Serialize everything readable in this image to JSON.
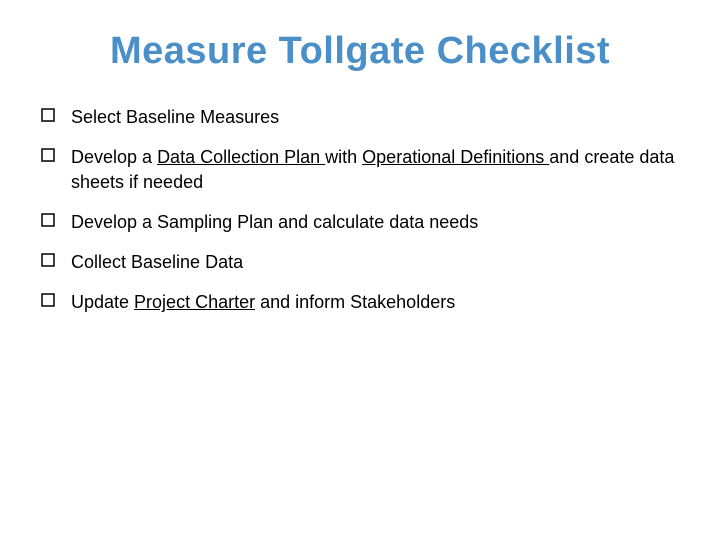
{
  "title": "Measure Tollgate Checklist",
  "title_color": "#4a8fc7",
  "title_fontsize": 38,
  "body_fontsize": 18,
  "body_color": "#000000",
  "checkbox_stroke": "#000000",
  "background_color": "#ffffff",
  "items": [
    {
      "segments": [
        {
          "text": "Select Baseline Measures",
          "underline": false
        }
      ]
    },
    {
      "segments": [
        {
          "text": "Develop a ",
          "underline": false
        },
        {
          "text": "Data Collection Plan ",
          "underline": true
        },
        {
          "text": "with ",
          "underline": false
        },
        {
          "text": "Operational Definitions ",
          "underline": true
        },
        {
          "text": "and create data sheets if needed",
          "underline": false
        }
      ]
    },
    {
      "segments": [
        {
          "text": "Develop a Sampling Plan and calculate data needs",
          "underline": false
        }
      ]
    },
    {
      "segments": [
        {
          "text": "Collect Baseline Data",
          "underline": false
        }
      ]
    },
    {
      "segments": [
        {
          "text": "Update ",
          "underline": false
        },
        {
          "text": "Project Charter",
          "underline": true
        },
        {
          "text": " and inform Stakeholders",
          "underline": false
        }
      ]
    }
  ]
}
